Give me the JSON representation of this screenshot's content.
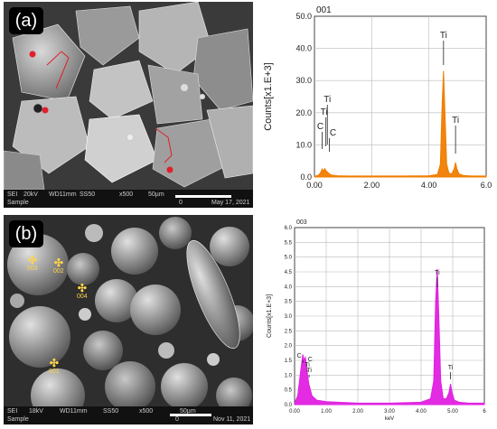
{
  "panels": {
    "a_label": "(a)",
    "b_label": "(b)"
  },
  "sem_a": {
    "info": {
      "detector": "SEI",
      "voltage": "20kV",
      "wd": "WD11mm",
      "ss": "SS50",
      "mag": "x500",
      "scale": "50µm",
      "date": "May 17, 2021",
      "sample": "Sample",
      "zero": "0"
    },
    "marker_color": "#e0202a"
  },
  "sem_b": {
    "info": {
      "detector": "SEI",
      "voltage": "18kV",
      "wd": "WD11mm",
      "ss": "SS50",
      "mag": "x500",
      "scale": "50µm",
      "date": "Nov 11, 2021",
      "sample": "Sample",
      "zero": "0"
    },
    "markers": [
      "003",
      "002",
      "004",
      "001"
    ]
  },
  "chart_data": [
    {
      "type": "line",
      "spectrum_id": "001",
      "ylabel": "Counts[x1.E+3]",
      "xlabel": "",
      "xlim": [
        0,
        6
      ],
      "ylim": [
        0,
        50
      ],
      "x_ticks": [
        "0.00",
        "2.00",
        "4.00",
        "6.0"
      ],
      "y_ticks": [
        "0.0",
        "10.0",
        "20.0",
        "30.0",
        "40.0",
        "50.0"
      ],
      "color": "#f07d00",
      "grid": true,
      "series": [
        {
          "x": [
            0.0,
            0.15,
            0.22,
            0.27,
            0.3,
            0.36,
            0.4,
            0.45,
            0.52,
            0.6,
            0.8,
            1.2,
            2.0,
            3.0,
            4.0,
            4.3,
            4.4,
            4.46,
            4.51,
            4.56,
            4.62,
            4.7,
            4.8,
            4.88,
            4.93,
            4.98,
            5.05,
            5.2,
            5.5,
            6.0
          ],
          "y": [
            0.2,
            0.6,
            1.5,
            2.5,
            1.8,
            2.6,
            2.0,
            1.6,
            1.0,
            0.6,
            0.4,
            0.3,
            0.3,
            0.3,
            0.4,
            0.8,
            4,
            22,
            33,
            20,
            4,
            1.2,
            1.0,
            2.5,
            4.5,
            2.5,
            1.0,
            0.5,
            0.3,
            0.3
          ]
        }
      ],
      "annotations": [
        {
          "text": "Ti",
          "x": 4.51,
          "y": 33
        },
        {
          "text": "Ti",
          "x": 4.93,
          "y": 4.5
        },
        {
          "text": "Ti",
          "x": 0.45
        },
        {
          "text": "Ti",
          "x": 0.4
        },
        {
          "text": "C",
          "x": 0.27
        },
        {
          "text": "C",
          "x": 0.52
        }
      ]
    },
    {
      "type": "line",
      "spectrum_id": "003",
      "ylabel": "Counts[x1.E+3]",
      "xlabel": "keV",
      "xlim": [
        0,
        6
      ],
      "ylim": [
        0,
        6
      ],
      "x_ticks": [
        "0.00",
        "1.00",
        "2.00",
        "3.00",
        "4.00",
        "5.00",
        "6"
      ],
      "y_ticks": [
        "0.0",
        "0.5",
        "1.0",
        "1.5",
        "2.0",
        "2.5",
        "3.0",
        "3.5",
        "4.0",
        "4.5",
        "5.0",
        "5.5",
        "6.0"
      ],
      "color": "#e020e0",
      "grid": true,
      "series": [
        {
          "x": [
            0.0,
            0.1,
            0.2,
            0.26,
            0.3,
            0.34,
            0.4,
            0.45,
            0.55,
            0.7,
            1.0,
            2.0,
            3.0,
            4.0,
            4.3,
            4.4,
            4.46,
            4.51,
            4.56,
            4.62,
            4.7,
            4.8,
            4.88,
            4.93,
            4.98,
            5.05,
            5.2,
            5.5,
            6.0
          ],
          "y": [
            0.05,
            0.3,
            1.2,
            1.7,
            1.5,
            1.6,
            1.1,
            0.7,
            0.3,
            0.15,
            0.1,
            0.05,
            0.05,
            0.08,
            0.2,
            0.8,
            3.5,
            4.6,
            3.0,
            0.8,
            0.2,
            0.2,
            0.4,
            0.7,
            0.4,
            0.15,
            0.08,
            0.05,
            0.05
          ]
        }
      ],
      "annotations": [
        {
          "text": "Ti",
          "x": 4.51,
          "y": 4.6
        },
        {
          "text": "Ti",
          "x": 4.93,
          "y": 0.7
        },
        {
          "text": "C",
          "x": 0.26
        },
        {
          "text": "C",
          "x": 0.38
        },
        {
          "text": "Ti",
          "x": 0.4
        },
        {
          "text": "Ti",
          "x": 0.46
        }
      ]
    }
  ]
}
